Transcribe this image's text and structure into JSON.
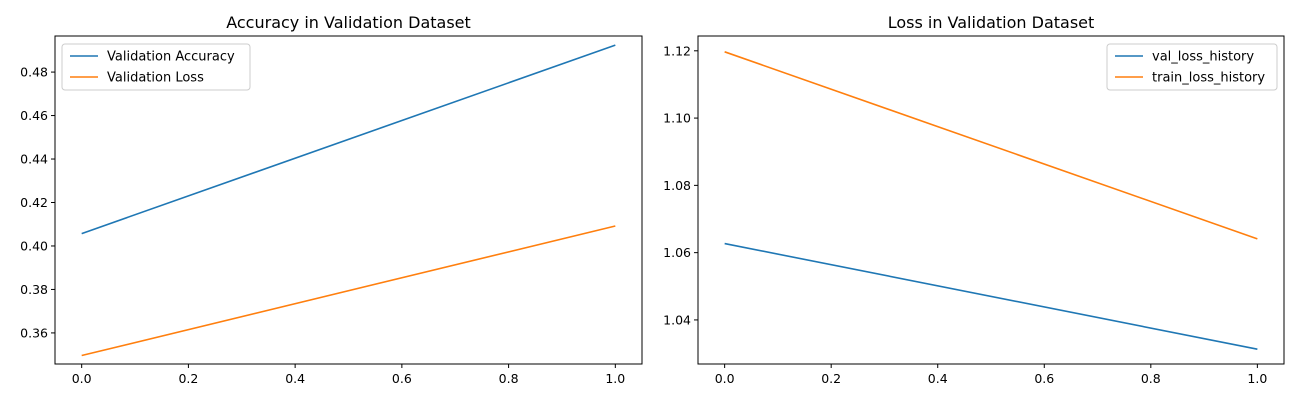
{
  "colors": {
    "series_1": "#1f77b4",
    "series_2": "#ff7f0e"
  },
  "chart_data": [
    {
      "type": "line",
      "title": "Accuracy in Validation Dataset",
      "xlabel": "",
      "ylabel": "",
      "xlim": [
        -0.05,
        1.05
      ],
      "ylim": [
        0.3457,
        0.4966
      ],
      "xticks": [
        "0.0",
        "0.2",
        "0.4",
        "0.6",
        "0.8",
        "1.0"
      ],
      "yticks": [
        "0.36",
        "0.38",
        "0.40",
        "0.42",
        "0.44",
        "0.46",
        "0.48"
      ],
      "grid": false,
      "legend_position": "top-left",
      "series": [
        {
          "name": "Validation Accuracy",
          "color": "#1f77b4",
          "x": [
            0,
            1
          ],
          "y": [
            0.4057,
            0.4924
          ]
        },
        {
          "name": "Validation Loss",
          "color": "#ff7f0e",
          "x": [
            0,
            1
          ],
          "y": [
            0.3496,
            0.4092
          ]
        }
      ]
    },
    {
      "type": "line",
      "title": "Loss in Validation Dataset",
      "xlabel": "",
      "ylabel": "",
      "xlim": [
        -0.05,
        1.05
      ],
      "ylim": [
        1.0269,
        1.1244
      ],
      "xticks": [
        "0.0",
        "0.2",
        "0.4",
        "0.6",
        "0.8",
        "1.0"
      ],
      "yticks": [
        "1.04",
        "1.06",
        "1.08",
        "1.10",
        "1.12"
      ],
      "grid": false,
      "legend_position": "top-right",
      "series": [
        {
          "name": "val_loss_history",
          "color": "#1f77b4",
          "x": [
            0,
            1
          ],
          "y": [
            1.0627,
            1.0313
          ]
        },
        {
          "name": "train_loss_history",
          "color": "#ff7f0e",
          "x": [
            0,
            1
          ],
          "y": [
            1.1197,
            1.0641
          ]
        }
      ]
    }
  ]
}
